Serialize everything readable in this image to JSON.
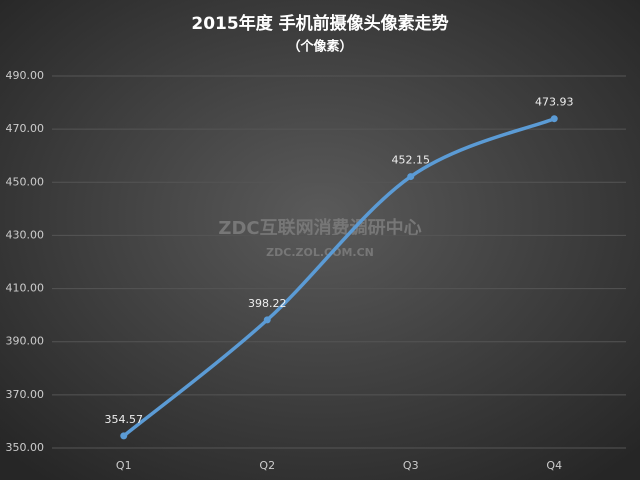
{
  "chart_data": {
    "type": "line",
    "title": "2015年度 手机前摄像头像素走势",
    "subtitle": "（个像素）",
    "watermark": [
      "ZDC互联网消费调研中心",
      "ZDC.ZOL.COM.CN"
    ],
    "categories": [
      "Q1",
      "Q2",
      "Q3",
      "Q4"
    ],
    "series": [
      {
        "name": "前摄像头像素",
        "color": "#5b9bd5",
        "values": [
          354.57,
          398.22,
          452.15,
          473.93
        ]
      }
    ],
    "ylim": [
      350,
      490
    ],
    "yticks": [
      {
        "value": 350,
        "label": "350.00"
      },
      {
        "value": 370,
        "label": "370.00"
      },
      {
        "value": 390,
        "label": "390.00"
      },
      {
        "value": 410,
        "label": "410.00"
      },
      {
        "value": 430,
        "label": "430.00"
      },
      {
        "value": 450,
        "label": "450.00"
      },
      {
        "value": 470,
        "label": "470.00"
      },
      {
        "value": 490,
        "label": "490.00"
      }
    ],
    "grid": true,
    "smooth": true
  }
}
